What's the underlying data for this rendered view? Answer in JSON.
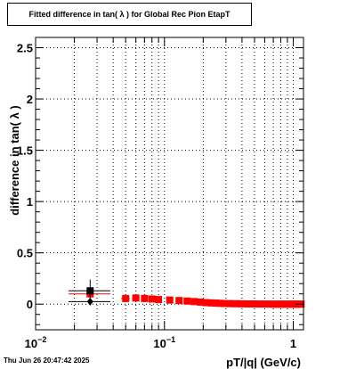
{
  "footer": {
    "date": "Thu Jun 26 20:47:42 2025"
  },
  "chart_data": {
    "type": "scatter",
    "title": "Fitted difference in tan( λ ) for Global Rec Pion EtapT",
    "xlabel": "pT/|q| (GeV/c)",
    "ylabel": "difference in tan( λ )",
    "xscale": "log",
    "xlim": [
      0.01,
      1.2
    ],
    "ylim": [
      -0.25,
      2.6
    ],
    "grid": true,
    "x_ticks": [
      {
        "value": 0.01,
        "base": "10",
        "exp": "−2"
      },
      {
        "value": 0.1,
        "base": "10",
        "exp": "−1"
      },
      {
        "value": 1,
        "base": "1",
        "exp": ""
      }
    ],
    "y_ticks": [
      {
        "value": 0,
        "label": "0"
      },
      {
        "value": 0.5,
        "label": "0.5"
      },
      {
        "value": 1,
        "label": "1"
      },
      {
        "value": 1.5,
        "label": "1.5"
      },
      {
        "value": 2,
        "label": "2"
      },
      {
        "value": 2.5,
        "label": "2.5"
      }
    ],
    "series": [
      {
        "color": "#ff0000",
        "marker": "square",
        "points": [
          {
            "x": 0.0265,
            "y": 0.1,
            "xerr": [
              0.018,
              0.038
            ],
            "yerr": 0.03
          },
          {
            "x": 0.05,
            "y": 0.055,
            "xerr": [
              0.046,
              0.054
            ],
            "yerr": 0.02
          },
          {
            "x": 0.06,
            "y": 0.06,
            "xerr": [
              0.056,
              0.064
            ],
            "yerr": 0.02
          },
          {
            "x": 0.07,
            "y": 0.055,
            "xerr": [
              0.066,
              0.074
            ],
            "yerr": 0.02
          },
          {
            "x": 0.08,
            "y": 0.05,
            "xerr": [
              0.076,
              0.084
            ],
            "yerr": 0.02
          },
          {
            "x": 0.09,
            "y": 0.045,
            "xerr": [
              0.086,
              0.094
            ],
            "yerr": 0.02
          },
          {
            "x": 0.11,
            "y": 0.04,
            "xerr": [
              0.105,
              0.115
            ],
            "yerr": 0.015
          },
          {
            "x": 0.13,
            "y": 0.035,
            "xerr": [
              0.125,
              0.135
            ],
            "yerr": 0.015
          },
          {
            "x": 0.15,
            "y": 0.03,
            "xerr": [
              0.145,
              0.155
            ],
            "yerr": 0.01
          },
          {
            "x": 0.17,
            "y": 0.025,
            "xerr": [
              0.165,
              0.175
            ],
            "yerr": 0.01
          },
          {
            "x": 0.19,
            "y": 0.02,
            "xerr": [
              0.185,
              0.195
            ],
            "yerr": 0.01
          },
          {
            "x": 0.21,
            "y": 0.015,
            "xerr": [
              0.205,
              0.215
            ],
            "yerr": 0.01
          },
          {
            "x": 0.23,
            "y": 0.012,
            "xerr": [
              0.225,
              0.235
            ],
            "yerr": 0.01
          },
          {
            "x": 0.25,
            "y": 0.01,
            "xerr": [
              0.245,
              0.255
            ],
            "yerr": 0.01
          },
          {
            "x": 0.27,
            "y": 0.008,
            "xerr": [
              0.265,
              0.275
            ],
            "yerr": 0.01
          },
          {
            "x": 0.29,
            "y": 0.006,
            "xerr": [
              0.285,
              0.295
            ],
            "yerr": 0.01
          },
          {
            "x": 0.32,
            "y": 0.005,
            "xerr": [
              0.31,
              0.33
            ],
            "yerr": 0.005
          },
          {
            "x": 0.36,
            "y": 0.004,
            "xerr": [
              0.35,
              0.37
            ],
            "yerr": 0.005
          },
          {
            "x": 0.4,
            "y": 0.003,
            "xerr": [
              0.39,
              0.41
            ],
            "yerr": 0.005
          },
          {
            "x": 0.45,
            "y": 0.002,
            "xerr": [
              0.44,
              0.46
            ],
            "yerr": 0.005
          },
          {
            "x": 0.5,
            "y": 0.002,
            "xerr": [
              0.49,
              0.51
            ],
            "yerr": 0.005
          },
          {
            "x": 0.55,
            "y": 0.001,
            "xerr": [
              0.54,
              0.56
            ],
            "yerr": 0.005
          },
          {
            "x": 0.6,
            "y": 0.001,
            "xerr": [
              0.59,
              0.61
            ],
            "yerr": 0.005
          },
          {
            "x": 0.65,
            "y": 0.001,
            "xerr": [
              0.64,
              0.66
            ],
            "yerr": 0.005
          },
          {
            "x": 0.7,
            "y": 0.0,
            "xerr": [
              0.69,
              0.71
            ],
            "yerr": 0.005
          },
          {
            "x": 0.75,
            "y": 0.0,
            "xerr": [
              0.74,
              0.76
            ],
            "yerr": 0.005
          },
          {
            "x": 0.8,
            "y": 0.0,
            "xerr": [
              0.79,
              0.81
            ],
            "yerr": 0.005
          },
          {
            "x": 0.85,
            "y": 0.0,
            "xerr": [
              0.84,
              0.86
            ],
            "yerr": 0.005
          },
          {
            "x": 0.9,
            "y": 0.0,
            "xerr": [
              0.89,
              0.91
            ],
            "yerr": 0.005
          },
          {
            "x": 0.95,
            "y": 0.0,
            "xerr": [
              0.94,
              0.96
            ],
            "yerr": 0.005
          },
          {
            "x": 1.0,
            "y": 0.0,
            "xerr": [
              0.99,
              1.01
            ],
            "yerr": 0.005
          },
          {
            "x": 1.05,
            "y": 0.0,
            "xerr": [
              1.04,
              1.06
            ],
            "yerr": 0.005
          },
          {
            "x": 1.1,
            "y": 0.0,
            "xerr": [
              1.09,
              1.11
            ],
            "yerr": 0.005
          },
          {
            "x": 1.15,
            "y": 0.0,
            "xerr": [
              1.14,
              1.16
            ],
            "yerr": 0.005
          }
        ]
      },
      {
        "color": "#000000",
        "marker": "square",
        "points": [
          {
            "x": 0.0265,
            "y": 0.13,
            "xerr": [
              0.018,
              0.038
            ],
            "yerr": 0.11
          }
        ]
      },
      {
        "color": "#000000",
        "marker": "diamond",
        "points": [
          {
            "x": 0.0265,
            "y": 0.025,
            "xerr": [
              0.018,
              0.038
            ],
            "yerr": 0.02
          }
        ]
      }
    ]
  }
}
